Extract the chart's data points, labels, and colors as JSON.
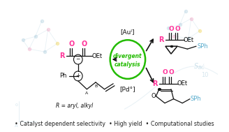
{
  "background_color": "#ffffff",
  "bullet_text": "• Catalyst dependent selectivity  • High yield  • Computational studies",
  "bullet_fontsize": 5.8,
  "bullet_color": "#222222",
  "pink": "#ff3399",
  "cyan": "#55aacc",
  "green": "#22bb00",
  "dark": "#111111",
  "light_blue": "#aaccdd",
  "au_label": "[Auᴵ]",
  "pd_label": "[Pd°]",
  "divergent_line1": "divergent",
  "divergent_line2": "catalysis",
  "r_label": "R = aryl, alkyl",
  "sbc_label": "S₂’C",
  "ten_label": "10",
  "zero_label": "0",
  "a_label": "A"
}
